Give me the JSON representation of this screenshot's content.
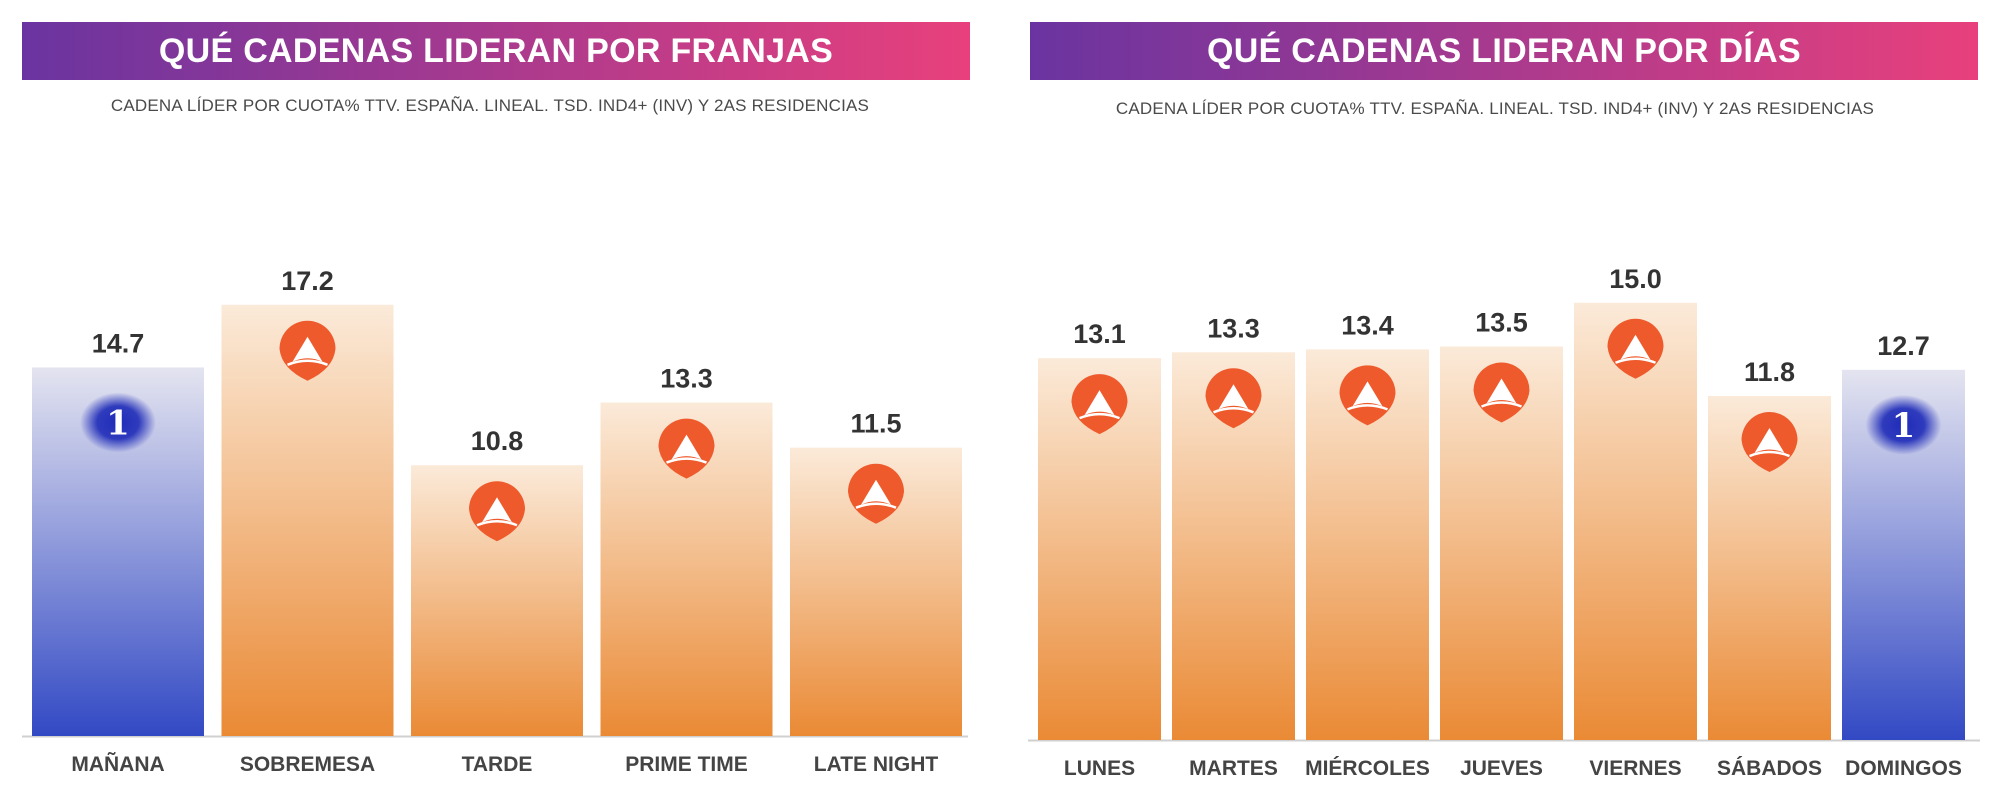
{
  "colors": {
    "banner_start": "#6a34a0",
    "banner_end": "#e8407c",
    "orange_top": "#fbead9",
    "orange_bottom": "#ea8a35",
    "blue_top": "#e4e4f0",
    "blue_bottom": "#3249c4",
    "antena3_logo": "#ee5a2c",
    "la1_logo": "#1e2bb8",
    "value_text": "#333333",
    "label_text": "#444444"
  },
  "icons": {
    "antena3": "antena3-logo-icon",
    "la1": "la1-logo-icon"
  },
  "la1_logo_text": "1",
  "panels": [
    {
      "banner_title": "QUÉ CADENAS LIDERAN POR FRANJAS",
      "subtitle": "CADENA LÍDER POR CUOTA% TTV. ESPAÑA. LINEAL. TSD. IND4+ (INV) Y 2AS RESIDENCIAS"
    },
    {
      "banner_title": "QUÉ CADENAS LIDERAN POR DÍAS",
      "subtitle": "CADENA LÍDER POR CUOTA% TTV. ESPAÑA. LINEAL. TSD. IND4+ (INV) Y 2AS RESIDENCIAS"
    }
  ],
  "chart_data": [
    {
      "type": "bar",
      "title": "QUÉ CADENAS LIDERAN POR FRANJAS",
      "subtitle": "CADENA LÍDER POR CUOTA% TTV. ESPAÑA. LINEAL. TSD. IND4+ (INV) Y 2AS RESIDENCIAS",
      "categories": [
        "MAÑANA",
        "SOBREMESA",
        "TARDE",
        "PRIME TIME",
        "LATE NIGHT"
      ],
      "values": [
        14.7,
        17.2,
        10.8,
        13.3,
        11.5
      ],
      "value_labels": [
        "14.7",
        "17.2",
        "10.8",
        "13.3",
        "11.5"
      ],
      "leader": [
        "la1",
        "antena3",
        "antena3",
        "antena3",
        "antena3"
      ],
      "ylim": [
        0,
        19.5
      ],
      "grid": false
    },
    {
      "type": "bar",
      "title": "QUÉ CADENAS LIDERAN POR DÍAS",
      "subtitle": "CADENA LÍDER POR CUOTA% TTV. ESPAÑA. LINEAL. TSD. IND4+ (INV) Y 2AS RESIDENCIAS",
      "categories": [
        "LUNES",
        "MARTES",
        "MIÉRCOLES",
        "JUEVES",
        "VIERNES",
        "SÁBADOS",
        "DOMINGOS"
      ],
      "values": [
        13.1,
        13.3,
        13.4,
        13.5,
        15.0,
        11.8,
        12.7
      ],
      "value_labels": [
        "13.1",
        "13.3",
        "13.4",
        "13.5",
        "15.0",
        "11.8",
        "12.7"
      ],
      "leader": [
        "antena3",
        "antena3",
        "antena3",
        "antena3",
        "antena3",
        "antena3",
        "la1"
      ],
      "ylim": [
        0,
        16.15
      ],
      "grid": false
    }
  ]
}
